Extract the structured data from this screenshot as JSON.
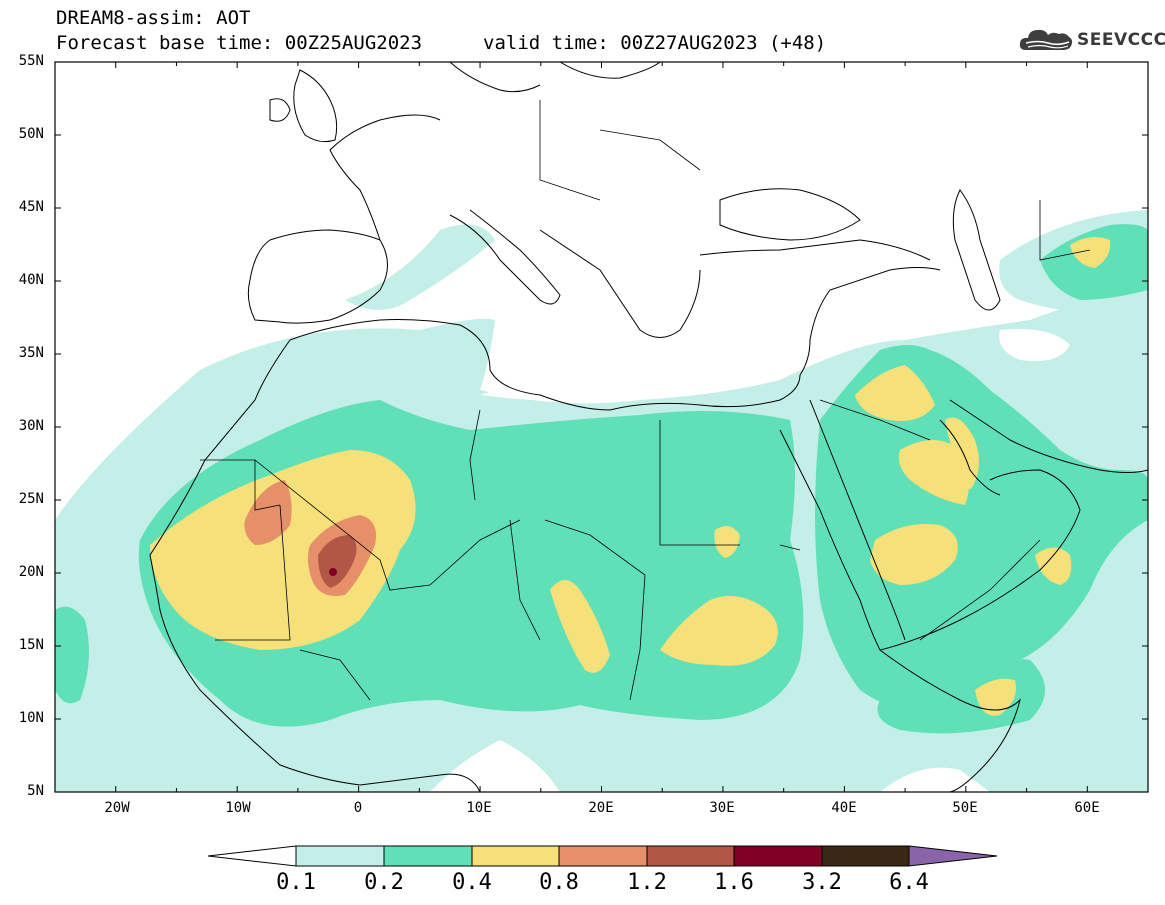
{
  "header": {
    "title_line1": "DREAM8-assim: AOT",
    "title_line2": "Forecast base time: 00Z25AUG2023",
    "valid_time": "valid time: 00Z27AUG2023 (+48)",
    "logo_text": "SEEVCCC",
    "logo_icon": "cloud-logo-icon"
  },
  "map": {
    "lat_labels": [
      "55N",
      "50N",
      "45N",
      "40N",
      "35N",
      "30N",
      "25N",
      "20N",
      "15N",
      "10N",
      "5N"
    ],
    "lon_labels": [
      "20W",
      "10W",
      "0",
      "10E",
      "20E",
      "30E",
      "40E",
      "50E",
      "60E"
    ],
    "lat_range": [
      5,
      55
    ],
    "lon_range": [
      -25,
      65
    ]
  },
  "colorbar": {
    "labels": [
      "0.1",
      "0.2",
      "0.4",
      "0.8",
      "1.2",
      "1.6",
      "3.2",
      "6.4"
    ],
    "colors": [
      "#ffffff",
      "#c3efe8",
      "#5fe0b7",
      "#f5e07a",
      "#e6906a",
      "#b25745",
      "#800026",
      "#3b2716",
      "#8b63a8"
    ]
  }
}
